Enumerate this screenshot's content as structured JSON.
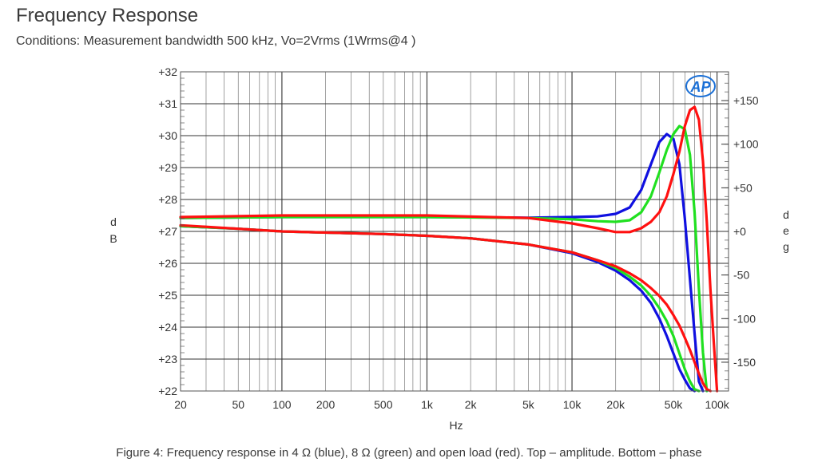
{
  "title": "Frequency Response",
  "subtitle": "Conditions: Measurement bandwidth 500 kHz, Vo=2Vrms (1Wrms@4  )",
  "caption": "Figure 4: Frequency response in 4 Ω (blue), 8 Ω (green) and open load (red). Top – amplitude. Bottom – phase",
  "logo_text": "AP",
  "chart_data": {
    "type": "line",
    "xscale": "log",
    "xlim": [
      20,
      120000
    ],
    "xlabel": "Hz",
    "x_ticks": [
      20,
      50,
      100,
      200,
      500,
      1000,
      2000,
      5000,
      10000,
      20000,
      50000,
      100000
    ],
    "x_tick_labels": [
      "20",
      "50",
      "100",
      "200",
      "500",
      "1k",
      "2k",
      "5k",
      "10k",
      "20k",
      "50k",
      "100k"
    ],
    "ylabel_left": [
      "d",
      "B"
    ],
    "ylim_left": [
      22,
      32
    ],
    "y_ticks_left": [
      22,
      23,
      24,
      25,
      26,
      27,
      28,
      29,
      30,
      31,
      32
    ],
    "y_tick_labels_left": [
      "+22",
      "+23",
      "+24",
      "+25",
      "+26",
      "+27",
      "+28",
      "+29",
      "+30",
      "+31",
      "+32"
    ],
    "ylabel_right": [
      "d",
      "e",
      "g"
    ],
    "ylim_right": [
      -183,
      183
    ],
    "y_ticks_right": [
      -150,
      -100,
      -50,
      0,
      50,
      100,
      150
    ],
    "y_tick_labels_right": [
      "-150",
      "-100",
      "-50",
      "+0",
      "+50",
      "+100",
      "+150"
    ],
    "grid": true,
    "series": [
      {
        "axis": "left",
        "color": "#1010e0",
        "points": [
          [
            20,
            27.42
          ],
          [
            100,
            27.45
          ],
          [
            1000,
            27.45
          ],
          [
            5000,
            27.43
          ],
          [
            10000,
            27.45
          ],
          [
            15000,
            27.47
          ],
          [
            20000,
            27.55
          ],
          [
            25000,
            27.75
          ],
          [
            30000,
            28.3
          ],
          [
            35000,
            29.1
          ],
          [
            40000,
            29.8
          ],
          [
            45000,
            30.05
          ],
          [
            50000,
            29.9
          ],
          [
            55000,
            29.1
          ],
          [
            60000,
            27.4
          ],
          [
            65000,
            25.5
          ],
          [
            70000,
            23.8
          ],
          [
            75000,
            22.3
          ],
          [
            80000,
            21.5
          ]
        ]
      },
      {
        "axis": "left",
        "color": "#20e020",
        "points": [
          [
            20,
            27.42
          ],
          [
            100,
            27.45
          ],
          [
            1000,
            27.45
          ],
          [
            5000,
            27.42
          ],
          [
            10000,
            27.38
          ],
          [
            15000,
            27.32
          ],
          [
            20000,
            27.3
          ],
          [
            25000,
            27.35
          ],
          [
            30000,
            27.6
          ],
          [
            35000,
            28.1
          ],
          [
            40000,
            28.85
          ],
          [
            45000,
            29.55
          ],
          [
            50000,
            30.05
          ],
          [
            55000,
            30.3
          ],
          [
            60000,
            30.2
          ],
          [
            65000,
            29.4
          ],
          [
            70000,
            27.6
          ],
          [
            75000,
            25.2
          ],
          [
            80000,
            23.2
          ],
          [
            85000,
            22
          ]
        ]
      },
      {
        "axis": "left",
        "color": "#ff1010",
        "points": [
          [
            20,
            27.45
          ],
          [
            100,
            27.5
          ],
          [
            1000,
            27.5
          ],
          [
            5000,
            27.42
          ],
          [
            10000,
            27.25
          ],
          [
            15000,
            27.1
          ],
          [
            20000,
            26.98
          ],
          [
            25000,
            26.98
          ],
          [
            30000,
            27.1
          ],
          [
            35000,
            27.3
          ],
          [
            40000,
            27.6
          ],
          [
            45000,
            28.1
          ],
          [
            50000,
            28.8
          ],
          [
            55000,
            29.5
          ],
          [
            60000,
            30.3
          ],
          [
            65000,
            30.8
          ],
          [
            70000,
            30.9
          ],
          [
            75000,
            30.5
          ],
          [
            80000,
            29.2
          ],
          [
            85000,
            27.3
          ],
          [
            90000,
            25.2
          ],
          [
            95000,
            23.5
          ],
          [
            100000,
            22
          ]
        ]
      },
      {
        "axis": "right",
        "color": "#1010e0",
        "points": [
          [
            20,
            6
          ],
          [
            50,
            3
          ],
          [
            100,
            0
          ],
          [
            500,
            -3
          ],
          [
            1000,
            -5
          ],
          [
            2000,
            -8
          ],
          [
            5000,
            -15
          ],
          [
            10000,
            -25
          ],
          [
            15000,
            -35
          ],
          [
            20000,
            -45
          ],
          [
            25000,
            -56
          ],
          [
            30000,
            -68
          ],
          [
            35000,
            -82
          ],
          [
            40000,
            -100
          ],
          [
            45000,
            -120
          ],
          [
            50000,
            -140
          ],
          [
            55000,
            -158
          ],
          [
            60000,
            -170
          ],
          [
            65000,
            -180
          ],
          [
            70000,
            -183
          ]
        ]
      },
      {
        "axis": "right",
        "color": "#20e020",
        "points": [
          [
            20,
            6
          ],
          [
            50,
            3
          ],
          [
            100,
            0
          ],
          [
            500,
            -3
          ],
          [
            1000,
            -5
          ],
          [
            2000,
            -8
          ],
          [
            5000,
            -15
          ],
          [
            10000,
            -24
          ],
          [
            15000,
            -33
          ],
          [
            20000,
            -42
          ],
          [
            25000,
            -52
          ],
          [
            30000,
            -62
          ],
          [
            35000,
            -74
          ],
          [
            40000,
            -88
          ],
          [
            45000,
            -103
          ],
          [
            50000,
            -120
          ],
          [
            55000,
            -140
          ],
          [
            60000,
            -158
          ],
          [
            65000,
            -172
          ],
          [
            70000,
            -181
          ],
          [
            75000,
            -183
          ]
        ]
      },
      {
        "axis": "right",
        "color": "#ff1010",
        "points": [
          [
            20,
            7
          ],
          [
            50,
            3
          ],
          [
            100,
            0
          ],
          [
            500,
            -3
          ],
          [
            1000,
            -5
          ],
          [
            2000,
            -8
          ],
          [
            5000,
            -15
          ],
          [
            10000,
            -24
          ],
          [
            15000,
            -33
          ],
          [
            20000,
            -40
          ],
          [
            25000,
            -48
          ],
          [
            30000,
            -56
          ],
          [
            35000,
            -65
          ],
          [
            40000,
            -74
          ],
          [
            45000,
            -84
          ],
          [
            50000,
            -96
          ],
          [
            55000,
            -108
          ],
          [
            60000,
            -122
          ],
          [
            65000,
            -136
          ],
          [
            70000,
            -150
          ],
          [
            75000,
            -163
          ],
          [
            80000,
            -174
          ],
          [
            85000,
            -181
          ],
          [
            90000,
            -183
          ]
        ]
      }
    ]
  }
}
